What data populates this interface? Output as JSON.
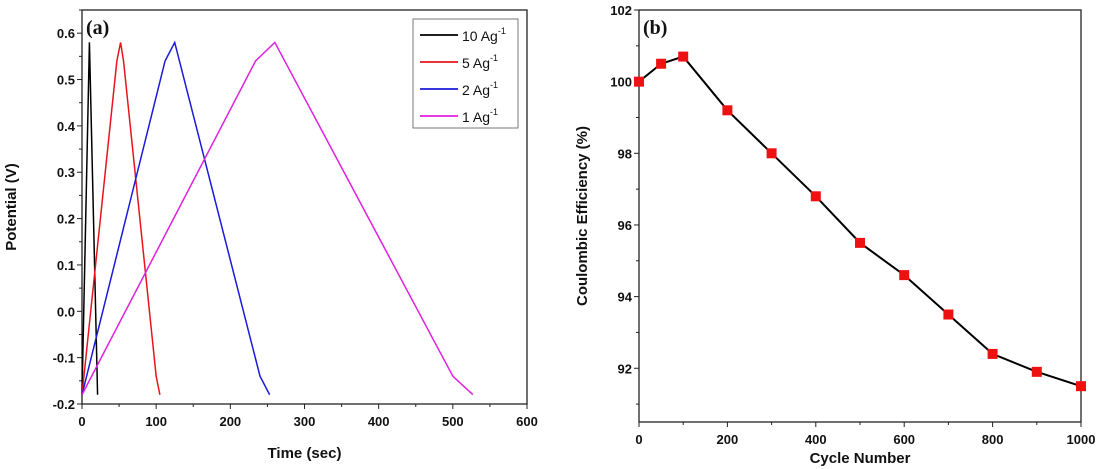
{
  "chart_data": [
    {
      "type": "line",
      "panel_label": "(a)",
      "xlabel": "Time (sec)",
      "ylabel": "Potential (V)",
      "xlim": [
        0,
        600
      ],
      "ylim": [
        -0.2,
        0.65
      ],
      "xticks": [
        0,
        100,
        200,
        300,
        400,
        500,
        600
      ],
      "yticks": [
        -0.2,
        -0.1,
        0.0,
        0.1,
        0.2,
        0.3,
        0.4,
        0.5,
        0.6
      ],
      "legend_position": "top-right",
      "series": [
        {
          "name": "10 Ag",
          "sup": "-1",
          "color": "#000000",
          "x": [
            0,
            10,
            21
          ],
          "y": [
            -0.18,
            0.58,
            -0.18
          ]
        },
        {
          "name": "5 Ag",
          "sup": "-1",
          "color": "#e8141c",
          "x": [
            0,
            47,
            52,
            56,
            100,
            105
          ],
          "y": [
            -0.18,
            0.54,
            0.58,
            0.54,
            -0.14,
            -0.18
          ]
        },
        {
          "name": "2 Ag",
          "sup": "-1",
          "color": "#1a1ad8",
          "x": [
            0,
            112,
            125,
            240,
            253
          ],
          "y": [
            -0.18,
            0.54,
            0.58,
            -0.14,
            -0.18
          ]
        },
        {
          "name": "1 Ag",
          "sup": "-1",
          "color": "#e020e0",
          "x": [
            0,
            234,
            260,
            500,
            527
          ],
          "y": [
            -0.18,
            0.54,
            0.58,
            -0.14,
            -0.18
          ]
        }
      ]
    },
    {
      "type": "line",
      "panel_label": "(b)",
      "xlabel": "Cycle Number",
      "ylabel": "Coulombic Efficiency (%)",
      "xlim": [
        0,
        1000
      ],
      "ylim": [
        90.5,
        102
      ],
      "xticks": [
        0,
        200,
        400,
        600,
        800,
        1000
      ],
      "yticks": [
        92,
        94,
        96,
        98,
        100,
        102
      ],
      "series": [
        {
          "name": "Coulombic Efficiency",
          "color": "#000000",
          "marker_color": "#ee1111",
          "x": [
            0,
            50,
            100,
            200,
            300,
            400,
            500,
            600,
            700,
            800,
            900,
            1000
          ],
          "y": [
            100,
            100.5,
            100.7,
            99.2,
            98,
            96.8,
            95.5,
            94.6,
            93.5,
            92.4,
            91.9,
            91.5
          ]
        }
      ]
    }
  ]
}
